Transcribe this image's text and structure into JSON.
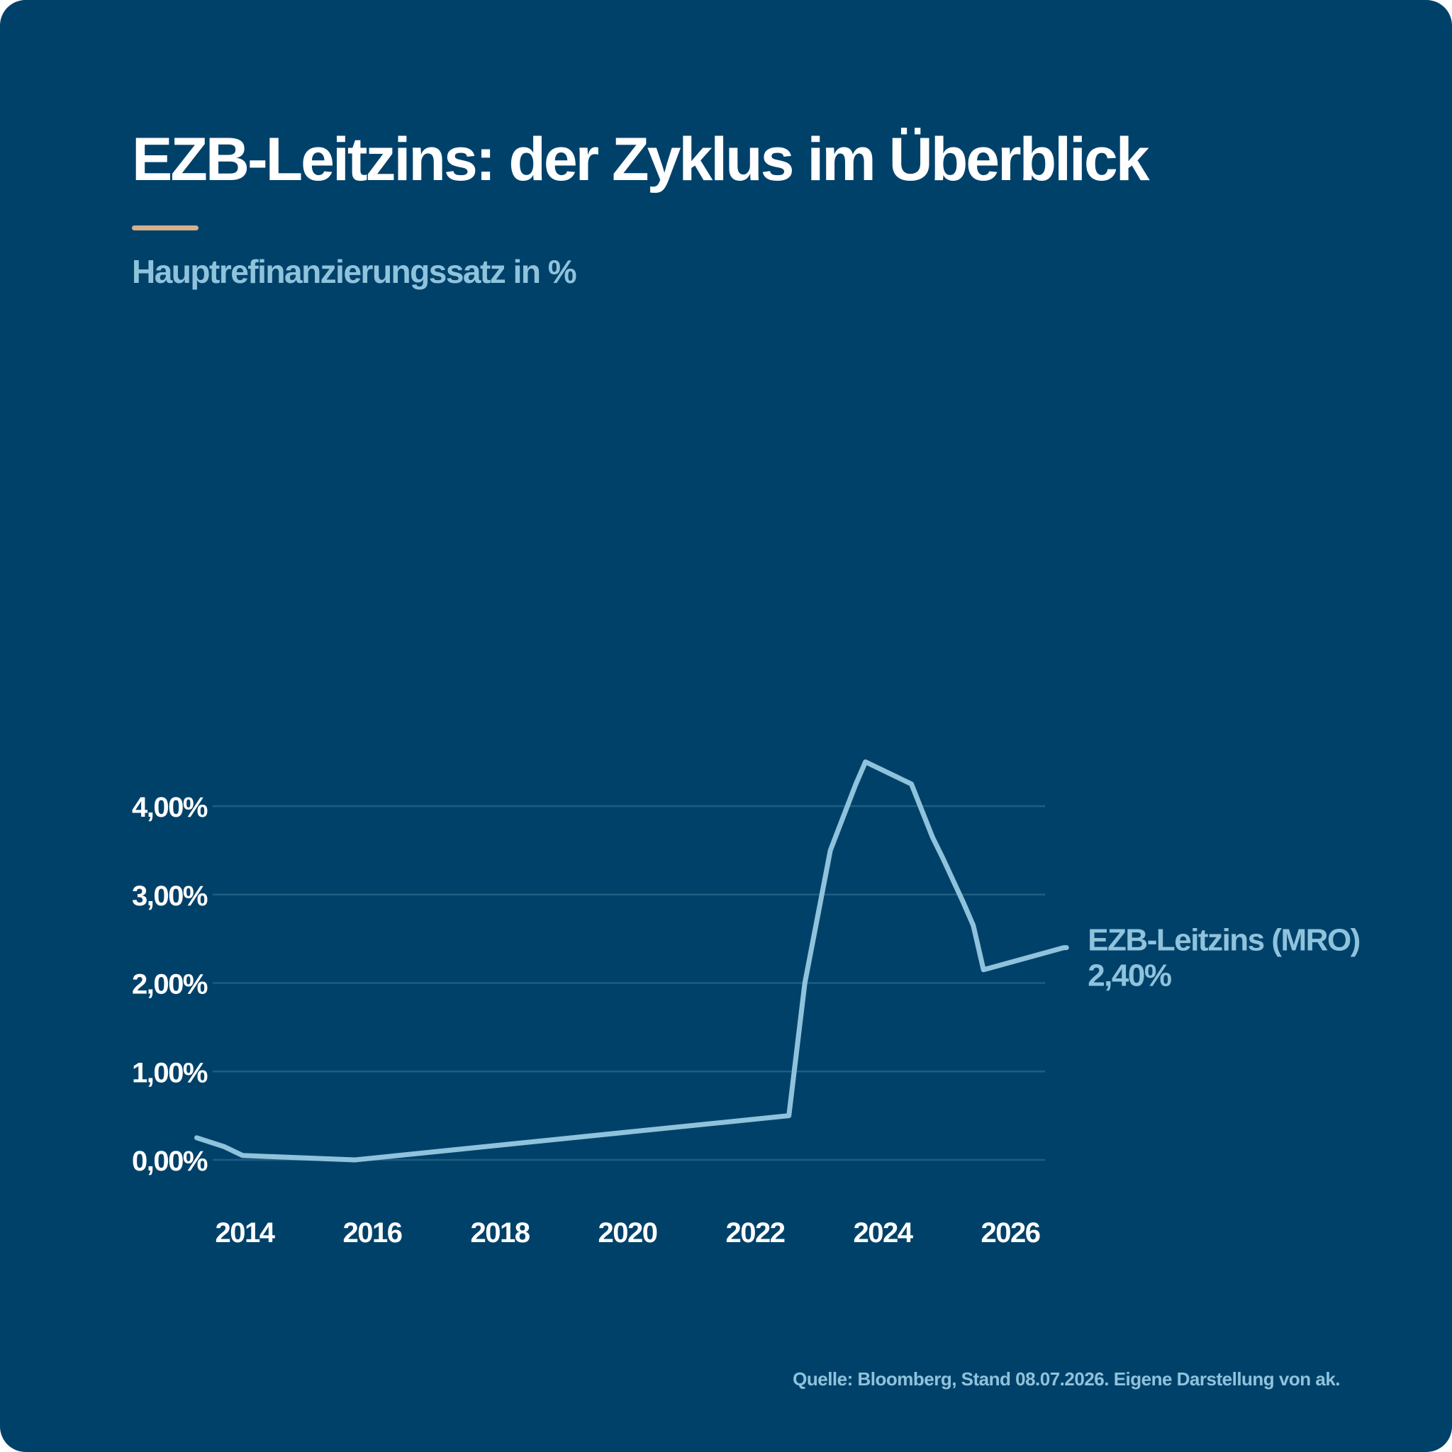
{
  "header": {
    "title": "EZB-Leitzins: der Zyklus im Überblick",
    "subtitle": "Hauptrefinanzierungssatz in %"
  },
  "footer": {
    "source": "Quelle: Bloomberg, Stand 08.07.2026. Eigene Darstellung von ak."
  },
  "colors": {
    "background": "#00416a",
    "line": "#8fc3dc",
    "accent": "#d4b08c",
    "grid": "#1f5e80",
    "text": "#ffffff"
  },
  "chart_data": {
    "type": "line",
    "title": "EZB-Leitzins: der Zyklus im Überblick",
    "subtitle": "Hauptrefinanzierungssatz in %",
    "xlabel": "",
    "ylabel": "",
    "xlim": [
      2013.2,
      2026.9
    ],
    "ylim": [
      0,
      4.5
    ],
    "grid": true,
    "legend": "none",
    "y_ticks": [
      {
        "value": 0,
        "label": "0,00%"
      },
      {
        "value": 1,
        "label": "1,00%"
      },
      {
        "value": 2,
        "label": "2,00%"
      },
      {
        "value": 3,
        "label": "3,00%"
      },
      {
        "value": 4,
        "label": "4,00%"
      }
    ],
    "x_ticks": [
      {
        "value": 2014,
        "label": "2014"
      },
      {
        "value": 2016,
        "label": "2016"
      },
      {
        "value": 2018,
        "label": "2018"
      },
      {
        "value": 2020,
        "label": "2020"
      },
      {
        "value": 2022,
        "label": "2022"
      },
      {
        "value": 2024,
        "label": "2024"
      },
      {
        "value": 2026,
        "label": "2026"
      }
    ],
    "series": [
      {
        "name": "EZB-Leitzins (MRO)",
        "end_label": "2,40%",
        "x": [
          2013.25,
          2013.68,
          2013.97,
          2015.73,
          2022.53,
          2022.78,
          2023.18,
          2023.58,
          2023.73,
          2024.45,
          2024.78,
          2024.95,
          2025.27,
          2025.42,
          2025.58,
          2026.84,
          2026.88
        ],
        "y": [
          0.25,
          0.15,
          0.05,
          0.0,
          0.5,
          2.0,
          3.5,
          4.25,
          4.5,
          4.25,
          3.65,
          3.4,
          2.9,
          2.65,
          2.15,
          2.4,
          2.4
        ]
      }
    ]
  }
}
